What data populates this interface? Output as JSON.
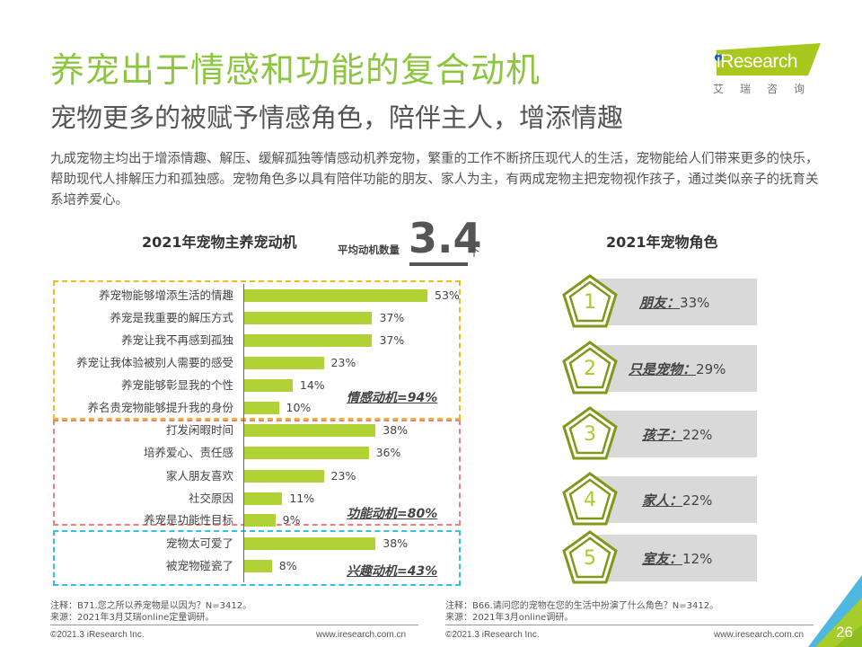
{
  "header": {
    "title": "养宠出于情感和功能的复合动机",
    "subtitle": "宠物更多的被赋予情感角色，陪伴主人，增添情趣",
    "intro": "九成宠物主均出于增添情趣、解压、缓解孤独等情感动机养宠物，繁重的工作不断挤压现代人的生活，宠物能给人们带来更多的快乐，帮助现代人排解压力和孤独感。宠物角色多以具有陪伴功能的朋友、家人为主，有两成宠物主把宠物视作孩子，通过类似亲子的抚育关系培养爱心。"
  },
  "logo": {
    "brand": "Research",
    "brand_prefix": "i",
    "cn": "艾瑞咨询",
    "color": "#a8c81e"
  },
  "left_chart": {
    "avg_label": "平均动机数量",
    "avg_value": "3.4",
    "avg_unit": "个"
  },
  "right_chart": {},
  "chart_data": [
    {
      "type": "bar",
      "orientation": "horizontal",
      "title": "2021年宠物主养宠动机",
      "categories": [
        "养宠物能够增添生活的情趣",
        "养宠是我重要的解压方式",
        "养宠让我不再感到孤独",
        "养宠让我体验被别人需要的感受",
        "养宠能够彰显我的个性",
        "养名贵宠物能够提升我的身份",
        "打发闲暇时间",
        "培养爱心、责任感",
        "家人朋友喜欢",
        "社交原因",
        "养宠是功能性目标",
        "宠物太可爱了",
        "被宠物碰瓷了"
      ],
      "values": [
        53,
        37,
        37,
        23,
        14,
        10,
        38,
        36,
        23,
        11,
        9,
        38,
        8
      ],
      "value_labels": [
        "53%",
        "37%",
        "37%",
        "23%",
        "14%",
        "10%",
        "38%",
        "36%",
        "23%",
        "11%",
        "9%",
        "38%",
        "8%"
      ],
      "unit": "%",
      "bar_color": "#b0d235",
      "groups": [
        {
          "name": "情感动机",
          "label": "情感动机=94%",
          "total": 94,
          "range": [
            0,
            5
          ],
          "color": "#f5b820"
        },
        {
          "name": "功能动机",
          "label": "功能动机=80%",
          "total": 80,
          "range": [
            6,
            10
          ],
          "color": "#ee7f82"
        },
        {
          "name": "兴趣动机",
          "label": "兴趣动机=43%",
          "total": 43,
          "range": [
            11,
            12
          ],
          "color": "#2ec2e8"
        }
      ],
      "xlabel": "",
      "ylabel": "",
      "xlim": [
        0,
        60
      ]
    },
    {
      "type": "table",
      "title": "2021年宠物角色",
      "rows": [
        {
          "rank": "1",
          "role": "朋友",
          "sep": "：",
          "value": "33%"
        },
        {
          "rank": "2",
          "role": "只是宠物",
          "sep": "：",
          "value": "29%"
        },
        {
          "rank": "3",
          "role": "孩子",
          "sep": "：",
          "value": "22%"
        },
        {
          "rank": "4",
          "role": "家人",
          "sep": "：",
          "value": "22%"
        },
        {
          "rank": "5",
          "role": "室友",
          "sep": "：",
          "value": "12%"
        }
      ]
    }
  ],
  "footer": {
    "left_note": "注释：B71.您之所以养宠物是以因为？N=3412。",
    "left_source": "来源：2021年3月艾瑞online定量调研。",
    "right_note": "注释：B66.请问您的宠物在您的生活中扮演了什么角色？N=3412。",
    "right_source": "来源：2021年3月online调研。",
    "copyright": "©2021.3 iResearch Inc.",
    "website": "www.iresearch.com.cn",
    "page_number": "26"
  }
}
